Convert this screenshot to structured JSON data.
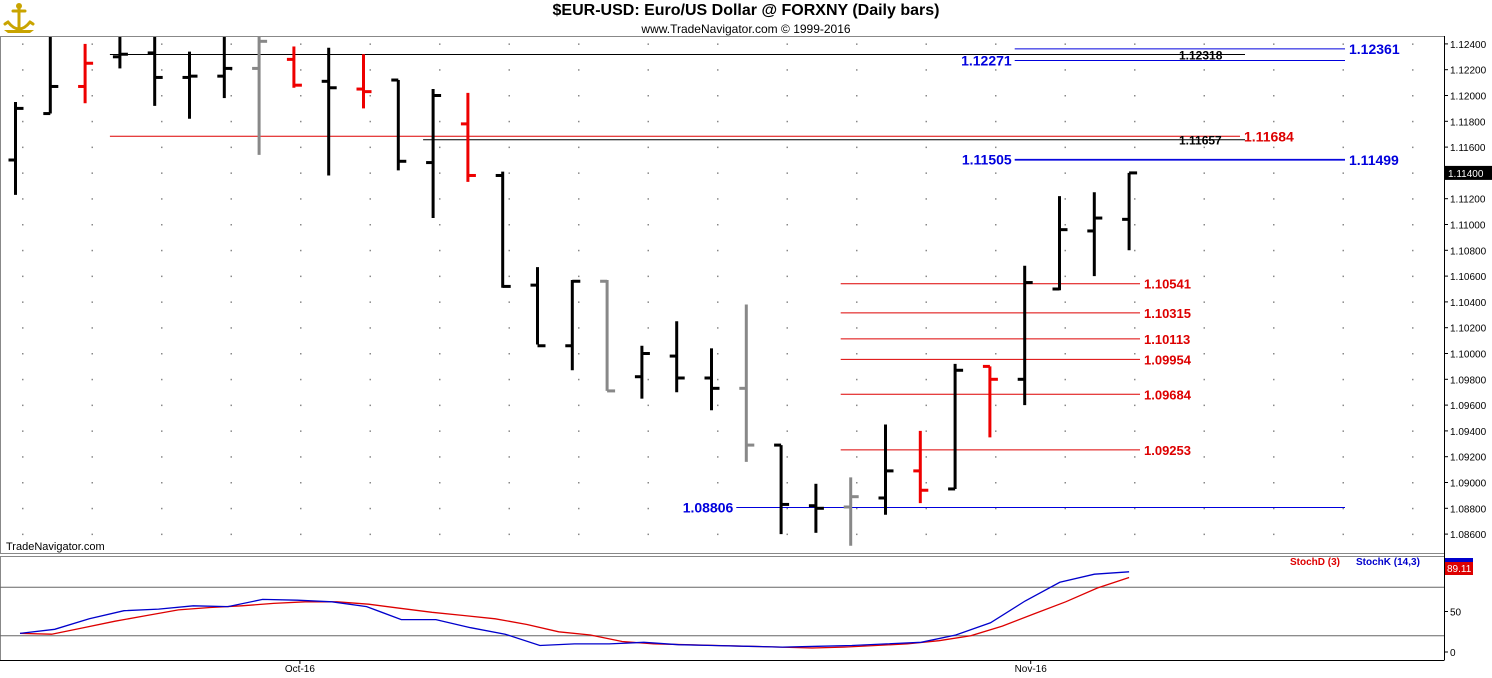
{
  "header": {
    "title": "$EUR-USD:  Euro/US Dollar @ FORXNY  (Daily bars)",
    "subtitle": "www.TradeNavigator.com © 1999-2016",
    "watermark": "TradeNavigator.com"
  },
  "colors": {
    "up_bar": "#000000",
    "down_bar": "#ee0000",
    "neutral_bar": "#888888",
    "blue_level": "#0000dd",
    "red_level": "#dd0000",
    "stoch_d": "#dd0000",
    "stoch_k": "#0000cc",
    "grid_dot": "#888888"
  },
  "chart_data": [
    {
      "type": "ohlc",
      "title": "$EUR-USD:  Euro/US Dollar @ FORXNY  (Daily bars)",
      "x_labels": [
        {
          "label": "Oct-16",
          "bar_index": 8
        },
        {
          "label": "Nov-16",
          "bar_index": 29
        }
      ],
      "y_range": [
        1.085,
        1.125
      ],
      "y_ticks": [
        "1.08600",
        "1.08800",
        "1.09000",
        "1.09200",
        "1.09400",
        "1.09600",
        "1.09800",
        "1.10000",
        "1.10200",
        "1.10400",
        "1.10600",
        "1.10800",
        "1.11000",
        "1.11200",
        "1.11400",
        "1.11600",
        "1.11800",
        "1.12000",
        "1.12200",
        "1.12400"
      ],
      "last_price_label": "1.11400",
      "bars": [
        {
          "open": 1.115,
          "high": 1.1195,
          "low": 1.1123,
          "close": 1.119,
          "color": "up"
        },
        {
          "open": 1.1186,
          "high": 1.1255,
          "low": 1.1186,
          "close": 1.1207,
          "color": "up"
        },
        {
          "open": 1.1207,
          "high": 1.124,
          "low": 1.1194,
          "close": 1.1225,
          "color": "down"
        },
        {
          "open": 1.123,
          "high": 1.1255,
          "low": 1.1221,
          "close": 1.1232,
          "color": "up"
        },
        {
          "open": 1.1233,
          "high": 1.1255,
          "low": 1.1192,
          "close": 1.1214,
          "color": "up"
        },
        {
          "open": 1.1214,
          "high": 1.1234,
          "low": 1.1182,
          "close": 1.1215,
          "color": "up"
        },
        {
          "open": 1.1215,
          "high": 1.1248,
          "low": 1.1198,
          "close": 1.1221,
          "color": "up"
        },
        {
          "open": 1.1221,
          "high": 1.1249,
          "low": 1.1154,
          "close": 1.1242,
          "color": "neutral"
        },
        {
          "open": 1.1228,
          "high": 1.1238,
          "low": 1.1206,
          "close": 1.1208,
          "color": "down"
        },
        {
          "open": 1.1211,
          "high": 1.1237,
          "low": 1.1138,
          "close": 1.1206,
          "color": "up"
        },
        {
          "open": 1.1205,
          "high": 1.1232,
          "low": 1.119,
          "close": 1.1203,
          "color": "down"
        },
        {
          "open": 1.1212,
          "high": 1.1212,
          "low": 1.1142,
          "close": 1.1149,
          "color": "up"
        },
        {
          "open": 1.1148,
          "high": 1.1205,
          "low": 1.1105,
          "close": 1.12,
          "color": "up"
        },
        {
          "open": 1.1178,
          "high": 1.1202,
          "low": 1.1133,
          "close": 1.1138,
          "color": "down"
        },
        {
          "open": 1.1138,
          "high": 1.1141,
          "low": 1.1051,
          "close": 1.1052,
          "color": "up"
        },
        {
          "open": 1.1053,
          "high": 1.1067,
          "low": 1.1007,
          "close": 1.1006,
          "color": "up"
        },
        {
          "open": 1.1006,
          "high": 1.1057,
          "low": 1.0987,
          "close": 1.1056,
          "color": "up"
        },
        {
          "open": 1.1056,
          "high": 1.1057,
          "low": 1.0971,
          "close": 1.0971,
          "color": "neutral"
        },
        {
          "open": 1.0982,
          "high": 1.1006,
          "low": 1.0965,
          "close": 1.1,
          "color": "up"
        },
        {
          "open": 1.0998,
          "high": 1.1025,
          "low": 1.097,
          "close": 1.0981,
          "color": "up"
        },
        {
          "open": 1.0981,
          "high": 1.1004,
          "low": 1.0956,
          "close": 1.0973,
          "color": "up"
        },
        {
          "open": 1.0973,
          "high": 1.1038,
          "low": 1.0916,
          "close": 1.0929,
          "color": "neutral"
        },
        {
          "open": 1.0929,
          "high": 1.0929,
          "low": 1.086,
          "close": 1.0883,
          "color": "up"
        },
        {
          "open": 1.0882,
          "high": 1.0899,
          "low": 1.0861,
          "close": 1.088,
          "color": "up"
        },
        {
          "open": 1.0881,
          "high": 1.0904,
          "low": 1.0851,
          "close": 1.0889,
          "color": "neutral"
        },
        {
          "open": 1.0888,
          "high": 1.0945,
          "low": 1.0875,
          "close": 1.0909,
          "color": "up"
        },
        {
          "open": 1.0909,
          "high": 1.094,
          "low": 1.0884,
          "close": 1.0894,
          "color": "down"
        },
        {
          "open": 1.0895,
          "high": 1.0992,
          "low": 1.0895,
          "close": 1.0987,
          "color": "up"
        },
        {
          "open": 1.099,
          "high": 1.099,
          "low": 1.0935,
          "close": 1.098,
          "color": "down"
        },
        {
          "open": 1.098,
          "high": 1.1068,
          "low": 1.096,
          "close": 1.1055,
          "color": "up"
        },
        {
          "open": 1.105,
          "high": 1.1122,
          "low": 1.1049,
          "close": 1.1096,
          "color": "up"
        },
        {
          "open": 1.1095,
          "high": 1.1125,
          "low": 1.106,
          "close": 1.1105,
          "color": "up"
        },
        {
          "open": 1.1104,
          "high": 1.114,
          "low": 1.108,
          "close": 1.114,
          "color": "up"
        }
      ],
      "levels": [
        {
          "label": "1.12361",
          "value": 1.12361,
          "style": "blue",
          "from_bar": 29,
          "label_side": "right"
        },
        {
          "label": "1.12318",
          "value": 1.12318,
          "style": "black",
          "from_bar": 3,
          "label_side": "mid"
        },
        {
          "label": "1.12271",
          "value": 1.12271,
          "style": "blue",
          "from_bar": 29,
          "label_side": "left"
        },
        {
          "label": "1.11684",
          "value": 1.11684,
          "style": "red",
          "from_bar": 3,
          "label_side": "right"
        },
        {
          "label": "1.11657",
          "value": 1.11657,
          "style": "black",
          "from_bar": 12,
          "label_side": "mid"
        },
        {
          "label": "1.11505",
          "value": 1.11505,
          "style": "blue",
          "from_bar": 29,
          "label_side": "left"
        },
        {
          "label": "1.11499",
          "value": 1.11499,
          "style": "blue",
          "from_bar": 29,
          "label_side": "right"
        },
        {
          "label": "1.10541",
          "value": 1.10541,
          "style": "red",
          "from_bar": 24,
          "label_side": "end"
        },
        {
          "label": "1.10315",
          "value": 1.10315,
          "style": "red",
          "from_bar": 24,
          "label_side": "end"
        },
        {
          "label": "1.10113",
          "value": 1.10113,
          "style": "red",
          "from_bar": 24,
          "label_side": "end"
        },
        {
          "label": "1.09954",
          "value": 1.09954,
          "style": "red",
          "from_bar": 24,
          "label_side": "end"
        },
        {
          "label": "1.09684",
          "value": 1.09684,
          "style": "red",
          "from_bar": 24,
          "label_side": "end"
        },
        {
          "label": "1.09253",
          "value": 1.09253,
          "style": "red",
          "from_bar": 24,
          "label_side": "end"
        },
        {
          "label": "1.08806",
          "value": 1.08806,
          "style": "blue",
          "from_bar": 21,
          "label_side": "left"
        }
      ]
    },
    {
      "type": "line",
      "y_range": [
        0,
        100
      ],
      "y_ticks": [
        "100",
        "50",
        "0"
      ],
      "reference_lines": [
        80,
        20
      ],
      "legend": [
        {
          "name": "StochD (3)",
          "color": "red"
        },
        {
          "name": "StochK (14,3)",
          "color": "blue"
        }
      ],
      "last_value_label": "89.11",
      "series": [
        {
          "name": "StochD (3)",
          "values": [
            23,
            22,
            30,
            38,
            45,
            52,
            55,
            57,
            60,
            62,
            62,
            59,
            54,
            49,
            45,
            41,
            34,
            25,
            21,
            13,
            10,
            9,
            8,
            7,
            6,
            5,
            6,
            8,
            10,
            14,
            20,
            32,
            47,
            62,
            79,
            92
          ]
        },
        {
          "name": "StochK (14,3)",
          "values": [
            23,
            28,
            41,
            51,
            53,
            57,
            56,
            65,
            64,
            62,
            56,
            40,
            40,
            30,
            22,
            8,
            10,
            10,
            12,
            9,
            8,
            7,
            6,
            7,
            8,
            10,
            12,
            21,
            36,
            63,
            86,
            96,
            99
          ]
        }
      ]
    }
  ]
}
